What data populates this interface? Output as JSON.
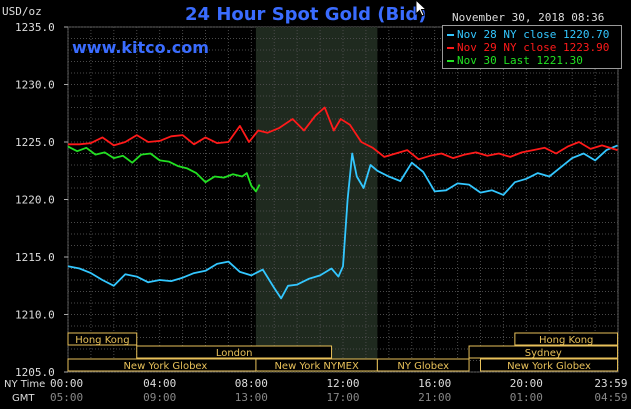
{
  "header": {
    "title": "24 Hour Spot Gold (Bid)",
    "site": "www.kitco.com",
    "unit": "USD/oz",
    "timestamp": "November 30, 2018 08:36"
  },
  "colors": {
    "background": "#000000",
    "nov28": "#33c7ff",
    "nov29": "#ff1a1a",
    "nov30": "#22e022",
    "title": "#3a6cff",
    "session_box": "#e8c15a"
  },
  "legend": [
    {
      "label": "Nov 28 NY close 1220.70",
      "color": "#33c7ff"
    },
    {
      "label": "Nov 29 NY close 1223.90",
      "color": "#ff1a1a"
    },
    {
      "label": "Nov 30 Last 1221.30",
      "color": "#22e022"
    }
  ],
  "axis_rows": {
    "ny_label": "NY Time",
    "gmt_label": "GMT",
    "ny_ticks": [
      "00:00",
      "04:00",
      "08:00",
      "12:00",
      "16:00",
      "20:00",
      "23:59"
    ],
    "gmt_ticks": [
      "05:00",
      "09:00",
      "13:00",
      "17:00",
      "21:00",
      "01:00",
      "04:59"
    ]
  },
  "sessions": [
    {
      "label": "Hong Kong",
      "start": 0,
      "end": 3
    },
    {
      "label": "London",
      "start": 3,
      "end": 11.5
    },
    {
      "label": "New York Globex",
      "start": 0,
      "end": 8.5
    },
    {
      "label": "New York NYMEX",
      "start": 8.2,
      "end": 13.5
    },
    {
      "label": "NY Globex",
      "start": 13.5,
      "end": 17.5
    },
    {
      "label": "Hong Kong",
      "start": 19.5,
      "end": 23.98
    },
    {
      "label": "Sydney",
      "start": 17.5,
      "end": 23.98
    },
    {
      "label": "New York Globex",
      "start": 18,
      "end": 23.98
    }
  ],
  "chart_data": {
    "type": "line",
    "title": "24 Hour Spot Gold (Bid)",
    "ylabel": "USD/oz",
    "xlabel": "NY Time",
    "ylim": [
      1205.0,
      1235.0
    ],
    "yticks": [
      "1235.0",
      "1230.0",
      "1225.0",
      "1220.0",
      "1215.0",
      "1210.0",
      "1205.0"
    ],
    "xlim": [
      0,
      24
    ],
    "highlight_hours": [
      8.2,
      13.5
    ],
    "grid": true,
    "legend_position": "top-right",
    "series": [
      {
        "name": "Nov 28 NY close 1220.70",
        "color": "#33c7ff",
        "x": [
          0,
          0.5,
          1,
          1.5,
          2,
          2.5,
          3,
          3.5,
          4,
          4.5,
          5,
          5.5,
          6,
          6.5,
          7,
          7.5,
          8,
          8.5,
          9,
          9.3,
          9.6,
          10,
          10.5,
          11,
          11.5,
          11.8,
          12,
          12.2,
          12.4,
          12.6,
          12.9,
          13.2,
          13.5,
          14,
          14.5,
          15,
          15.5,
          16,
          16.5,
          17,
          17.5,
          18,
          18.5,
          19,
          19.5,
          20,
          20.5,
          21,
          21.5,
          22,
          22.5,
          23,
          23.5,
          23.98
        ],
        "values": [
          1214.2,
          1214.0,
          1213.6,
          1213.0,
          1212.5,
          1213.5,
          1213.3,
          1212.8,
          1213.0,
          1212.9,
          1213.2,
          1213.6,
          1213.8,
          1214.4,
          1214.6,
          1213.7,
          1213.4,
          1213.9,
          1212.3,
          1211.4,
          1212.5,
          1212.6,
          1213.1,
          1213.4,
          1214.0,
          1213.3,
          1214.2,
          1220.0,
          1224.0,
          1222.0,
          1221.0,
          1223.0,
          1222.5,
          1222.0,
          1221.6,
          1223.2,
          1222.4,
          1220.7,
          1220.8,
          1221.4,
          1221.3,
          1220.6,
          1220.8,
          1220.4,
          1221.5,
          1221.8,
          1222.3,
          1222.0,
          1222.8,
          1223.6,
          1224.0,
          1223.4,
          1224.3,
          1224.7
        ]
      },
      {
        "name": "Nov 29 NY close 1223.90",
        "color": "#ff1a1a",
        "x": [
          0,
          0.5,
          1,
          1.5,
          2,
          2.5,
          3,
          3.5,
          4,
          4.5,
          5,
          5.5,
          6,
          6.5,
          7,
          7.5,
          7.9,
          8.3,
          8.7,
          9.2,
          9.8,
          10.3,
          10.8,
          11.2,
          11.6,
          11.9,
          12.3,
          12.8,
          13.3,
          13.8,
          14.3,
          14.8,
          15.3,
          15.8,
          16.3,
          16.8,
          17.3,
          17.8,
          18.3,
          18.8,
          19.3,
          19.8,
          20.3,
          20.8,
          21.3,
          21.8,
          22.3,
          22.8,
          23.3,
          23.98
        ],
        "values": [
          1224.8,
          1224.8,
          1224.9,
          1225.4,
          1224.7,
          1225.0,
          1225.6,
          1225.0,
          1225.1,
          1225.5,
          1225.6,
          1224.8,
          1225.4,
          1224.9,
          1225.0,
          1226.4,
          1225.0,
          1226.0,
          1225.8,
          1226.2,
          1227.0,
          1226.0,
          1227.3,
          1228.0,
          1226.0,
          1227.0,
          1226.5,
          1225.0,
          1224.5,
          1223.7,
          1224.0,
          1224.3,
          1223.5,
          1223.8,
          1224.0,
          1223.6,
          1223.9,
          1224.1,
          1223.8,
          1224.0,
          1223.7,
          1224.1,
          1224.3,
          1224.5,
          1224.0,
          1224.6,
          1225.0,
          1224.4,
          1224.7,
          1224.3
        ]
      },
      {
        "name": "Nov 30 Last 1221.30",
        "color": "#22e022",
        "x": [
          0,
          0.4,
          0.8,
          1.2,
          1.6,
          2.0,
          2.4,
          2.8,
          3.2,
          3.6,
          4.0,
          4.4,
          4.8,
          5.2,
          5.6,
          6.0,
          6.4,
          6.8,
          7.2,
          7.6,
          7.8,
          8.0,
          8.2,
          8.36
        ],
        "values": [
          1224.6,
          1224.2,
          1224.5,
          1223.9,
          1224.1,
          1223.6,
          1223.8,
          1223.2,
          1223.9,
          1224.0,
          1223.4,
          1223.3,
          1222.9,
          1222.7,
          1222.3,
          1221.5,
          1222.0,
          1221.9,
          1222.2,
          1222.0,
          1222.3,
          1221.2,
          1220.7,
          1221.3
        ]
      }
    ]
  }
}
